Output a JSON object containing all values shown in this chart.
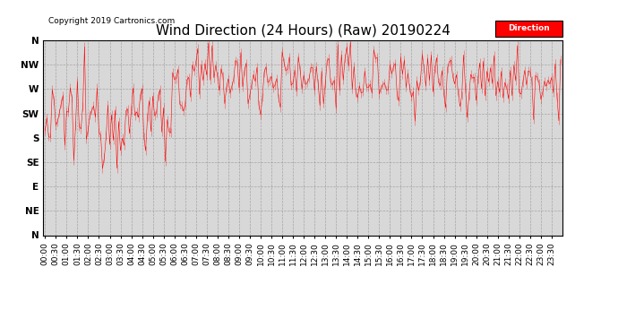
{
  "title": "Wind Direction (24 Hours) (Raw) 20190224",
  "copyright_text": "Copyright 2019 Cartronics.com",
  "legend_label": "Direction",
  "line_color": "#ff0000",
  "bg_color": "#ffffff",
  "plot_bg_color": "#d8d8d8",
  "grid_color": "#999999",
  "ytick_labels": [
    "N",
    "NW",
    "W",
    "SW",
    "S",
    "SE",
    "E",
    "NE",
    "N"
  ],
  "ytick_values": [
    360,
    315,
    270,
    225,
    180,
    135,
    90,
    45,
    0
  ],
  "ylim": [
    0,
    360
  ],
  "title_fontsize": 11,
  "tick_fontsize": 6.5,
  "copyright_fontsize": 6.5,
  "n_points": 288,
  "seed": 12345,
  "xtick_every_n": 6
}
